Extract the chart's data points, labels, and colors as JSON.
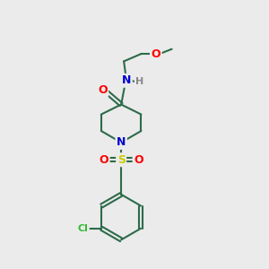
{
  "bg_color": "#ebebeb",
  "bond_color": "#2d6b4a",
  "bond_width": 1.5,
  "atom_colors": {
    "O": "#ff0000",
    "N": "#0000cc",
    "S": "#cccc00",
    "Cl": "#33bb33",
    "H": "#888888",
    "C": "#2d6b4a"
  },
  "figsize": [
    3.0,
    3.0
  ],
  "dpi": 100
}
